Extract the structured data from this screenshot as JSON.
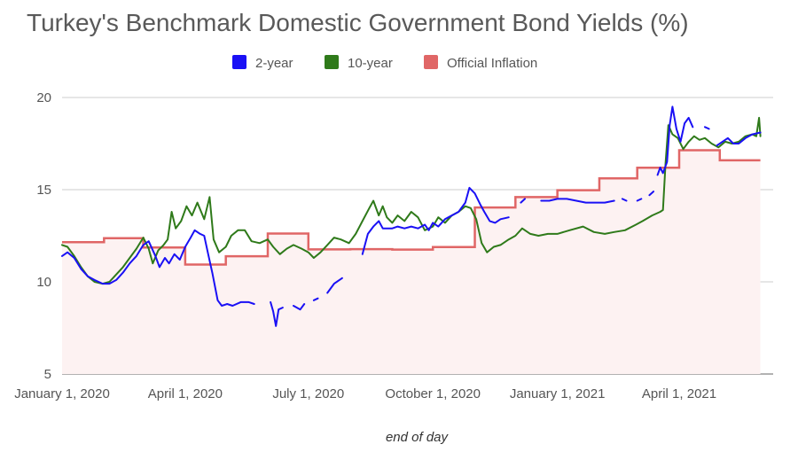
{
  "chart_data": {
    "type": "line",
    "title": "Turkey's Benchmark Domestic Government Bond Yields (%)",
    "xlabel": "end of day",
    "ylabel": "",
    "ylim": [
      5,
      20
    ],
    "yticks": [
      5,
      10,
      15,
      20
    ],
    "xticks": [
      {
        "label": "January 1, 2020",
        "date": "2020-01-01"
      },
      {
        "label": "April 1, 2020",
        "date": "2020-04-01"
      },
      {
        "label": "July 1, 2020",
        "date": "2020-07-01"
      },
      {
        "label": "October 1, 2020",
        "date": "2020-10-01"
      },
      {
        "label": "January 1, 2021",
        "date": "2021-01-01"
      },
      {
        "label": "April 1, 2021",
        "date": "2021-04-01"
      }
    ],
    "xlim": [
      "2020-01-01",
      "2021-06-01"
    ],
    "grid": true,
    "legend_position": "top",
    "series": [
      {
        "name": "2-year",
        "color": "#1a10f5",
        "points": [
          [
            "2020-01-01",
            11.4
          ],
          [
            "2020-01-05",
            11.6
          ],
          [
            "2020-01-10",
            11.3
          ],
          [
            "2020-01-15",
            10.7
          ],
          [
            "2020-01-20",
            10.3
          ],
          [
            "2020-01-25",
            10.1
          ],
          [
            "2020-01-31",
            9.9
          ],
          [
            "2020-02-05",
            9.9
          ],
          [
            "2020-02-10",
            10.1
          ],
          [
            "2020-02-15",
            10.5
          ],
          [
            "2020-02-20",
            11.0
          ],
          [
            "2020-02-25",
            11.4
          ],
          [
            "2020-03-01",
            12.0
          ],
          [
            "2020-03-05",
            12.2
          ],
          [
            "2020-03-10",
            11.4
          ],
          [
            "2020-03-13",
            10.8
          ],
          [
            "2020-03-17",
            11.3
          ],
          [
            "2020-03-20",
            11.0
          ],
          [
            "2020-03-24",
            11.5
          ],
          [
            "2020-03-28",
            11.2
          ],
          [
            "2020-04-01",
            11.9
          ],
          [
            "2020-04-05",
            12.4
          ],
          [
            "2020-04-08",
            12.8
          ],
          [
            "2020-04-12",
            12.6
          ],
          [
            "2020-04-15",
            12.5
          ],
          [
            "2020-04-18",
            11.5
          ],
          [
            "2020-04-21",
            10.5
          ],
          [
            "2020-04-25",
            9.0
          ],
          [
            "2020-04-28",
            8.7
          ],
          [
            "2020-05-02",
            8.8
          ],
          [
            "2020-05-06",
            8.7
          ],
          [
            "2020-05-12",
            8.9
          ],
          [
            "2020-05-18",
            8.9
          ],
          [
            "2020-05-22",
            8.8
          ],
          null,
          [
            "2020-06-03",
            8.9
          ],
          [
            "2020-06-05",
            8.4
          ],
          [
            "2020-06-07",
            7.6
          ],
          [
            "2020-06-09",
            8.5
          ],
          [
            "2020-06-12",
            8.6
          ],
          null,
          [
            "2020-06-20",
            8.7
          ],
          [
            "2020-06-25",
            8.5
          ],
          [
            "2020-06-28",
            8.8
          ],
          null,
          [
            "2020-07-05",
            9.0
          ],
          [
            "2020-07-08",
            9.1
          ],
          null,
          [
            "2020-07-15",
            9.4
          ],
          [
            "2020-07-20",
            9.9
          ],
          [
            "2020-07-26",
            10.2
          ],
          null,
          [
            "2020-08-03",
            10.5
          ],
          null,
          [
            "2020-08-10",
            11.5
          ],
          [
            "2020-08-14",
            12.6
          ],
          [
            "2020-08-18",
            13.0
          ],
          [
            "2020-08-22",
            13.3
          ],
          [
            "2020-08-25",
            12.9
          ],
          [
            "2020-09-01",
            12.9
          ],
          [
            "2020-09-05",
            13.0
          ],
          [
            "2020-09-10",
            12.9
          ],
          [
            "2020-09-15",
            13.0
          ],
          [
            "2020-09-20",
            12.9
          ],
          [
            "2020-09-25",
            13.1
          ],
          [
            "2020-09-28",
            12.8
          ],
          [
            "2020-10-01",
            13.2
          ],
          [
            "2020-10-05",
            13.0
          ],
          [
            "2020-10-10",
            13.4
          ],
          [
            "2020-10-15",
            13.6
          ],
          [
            "2020-10-20",
            13.8
          ],
          [
            "2020-10-25",
            14.3
          ],
          [
            "2020-10-28",
            15.1
          ],
          [
            "2020-11-01",
            14.8
          ],
          [
            "2020-11-05",
            14.2
          ],
          [
            "2020-11-08",
            13.8
          ],
          [
            "2020-11-12",
            13.3
          ],
          [
            "2020-11-16",
            13.2
          ],
          [
            "2020-11-20",
            13.4
          ],
          [
            "2020-11-26",
            13.5
          ],
          null,
          [
            "2020-12-05",
            14.3
          ],
          [
            "2020-12-08",
            14.5
          ],
          null,
          [
            "2020-12-20",
            14.4
          ],
          [
            "2020-12-26",
            14.4
          ],
          [
            "2021-01-01",
            14.5
          ],
          [
            "2021-01-08",
            14.5
          ],
          [
            "2021-01-15",
            14.4
          ],
          [
            "2021-01-22",
            14.3
          ],
          [
            "2021-01-29",
            14.3
          ],
          [
            "2021-02-05",
            14.3
          ],
          [
            "2021-02-12",
            14.4
          ],
          null,
          [
            "2021-02-18",
            14.5
          ],
          [
            "2021-02-21",
            14.4
          ],
          null,
          [
            "2021-03-01",
            14.4
          ],
          [
            "2021-03-04",
            14.5
          ],
          null,
          [
            "2021-03-10",
            14.7
          ],
          [
            "2021-03-13",
            14.9
          ],
          null,
          [
            "2021-03-16",
            15.8
          ],
          [
            "2021-03-18",
            16.2
          ],
          [
            "2021-03-20",
            15.9
          ],
          [
            "2021-03-23",
            16.5
          ],
          [
            "2021-03-25",
            18.5
          ],
          [
            "2021-03-27",
            19.5
          ],
          [
            "2021-03-30",
            18.3
          ],
          [
            "2021-04-02",
            17.6
          ],
          [
            "2021-04-05",
            18.6
          ],
          [
            "2021-04-08",
            18.9
          ],
          [
            "2021-04-11",
            18.4
          ],
          null,
          [
            "2021-04-20",
            18.4
          ],
          [
            "2021-04-23",
            18.3
          ],
          null,
          [
            "2021-04-29",
            17.4
          ],
          [
            "2021-05-03",
            17.6
          ],
          [
            "2021-05-07",
            17.8
          ],
          [
            "2021-05-11",
            17.5
          ],
          [
            "2021-05-15",
            17.5
          ],
          [
            "2021-05-20",
            17.8
          ],
          [
            "2021-05-25",
            18.0
          ],
          [
            "2021-05-31",
            18.1
          ]
        ]
      },
      {
        "name": "10-year",
        "color": "#2f7a1a",
        "points": [
          [
            "2020-01-01",
            12.0
          ],
          [
            "2020-01-05",
            11.9
          ],
          [
            "2020-01-10",
            11.4
          ],
          [
            "2020-01-15",
            10.8
          ],
          [
            "2020-01-20",
            10.3
          ],
          [
            "2020-01-25",
            10.0
          ],
          [
            "2020-01-31",
            9.9
          ],
          [
            "2020-02-05",
            10.0
          ],
          [
            "2020-02-10",
            10.4
          ],
          [
            "2020-02-15",
            10.8
          ],
          [
            "2020-02-20",
            11.3
          ],
          [
            "2020-02-25",
            11.8
          ],
          [
            "2020-03-01",
            12.4
          ],
          [
            "2020-03-05",
            11.8
          ],
          [
            "2020-03-08",
            11.0
          ],
          [
            "2020-03-12",
            11.7
          ],
          [
            "2020-03-16",
            12.0
          ],
          [
            "2020-03-19",
            12.3
          ],
          [
            "2020-03-22",
            13.8
          ],
          [
            "2020-03-25",
            12.9
          ],
          [
            "2020-03-29",
            13.3
          ],
          [
            "2020-04-02",
            14.1
          ],
          [
            "2020-04-06",
            13.6
          ],
          [
            "2020-04-10",
            14.3
          ],
          [
            "2020-04-15",
            13.4
          ],
          [
            "2020-04-19",
            14.6
          ],
          [
            "2020-04-22",
            12.3
          ],
          [
            "2020-04-26",
            11.6
          ],
          [
            "2020-05-01",
            11.9
          ],
          [
            "2020-05-05",
            12.5
          ],
          [
            "2020-05-10",
            12.8
          ],
          [
            "2020-05-15",
            12.8
          ],
          [
            "2020-05-20",
            12.2
          ],
          [
            "2020-05-26",
            12.1
          ],
          [
            "2020-06-01",
            12.3
          ],
          [
            "2020-06-05",
            11.9
          ],
          [
            "2020-06-10",
            11.5
          ],
          [
            "2020-06-15",
            11.8
          ],
          [
            "2020-06-20",
            12.0
          ],
          [
            "2020-06-26",
            11.8
          ],
          [
            "2020-07-01",
            11.6
          ],
          [
            "2020-07-05",
            11.3
          ],
          [
            "2020-07-10",
            11.6
          ],
          [
            "2020-07-15",
            12.0
          ],
          [
            "2020-07-20",
            12.4
          ],
          [
            "2020-07-25",
            12.3
          ],
          [
            "2020-07-31",
            12.1
          ],
          [
            "2020-08-05",
            12.6
          ],
          [
            "2020-08-10",
            13.3
          ],
          [
            "2020-08-15",
            14.0
          ],
          [
            "2020-08-18",
            14.4
          ],
          [
            "2020-08-22",
            13.6
          ],
          [
            "2020-08-25",
            14.1
          ],
          [
            "2020-08-28",
            13.5
          ],
          [
            "2020-09-01",
            13.2
          ],
          [
            "2020-09-05",
            13.6
          ],
          [
            "2020-09-10",
            13.3
          ],
          [
            "2020-09-15",
            13.8
          ],
          [
            "2020-09-20",
            13.5
          ],
          [
            "2020-09-25",
            12.8
          ],
          [
            "2020-10-01",
            13.0
          ],
          [
            "2020-10-05",
            13.5
          ],
          [
            "2020-10-10",
            13.2
          ],
          [
            "2020-10-15",
            13.6
          ],
          [
            "2020-10-20",
            13.8
          ],
          [
            "2020-10-25",
            14.1
          ],
          [
            "2020-10-29",
            14.0
          ],
          [
            "2020-11-02",
            13.4
          ],
          [
            "2020-11-06",
            12.1
          ],
          [
            "2020-11-10",
            11.6
          ],
          [
            "2020-11-15",
            11.9
          ],
          [
            "2020-11-20",
            12.0
          ],
          [
            "2020-11-26",
            12.3
          ],
          [
            "2020-12-01",
            12.5
          ],
          [
            "2020-12-06",
            12.9
          ],
          [
            "2020-12-12",
            12.6
          ],
          [
            "2020-12-18",
            12.5
          ],
          [
            "2020-12-25",
            12.6
          ],
          [
            "2021-01-01",
            12.6
          ],
          [
            "2021-01-10",
            12.8
          ],
          [
            "2021-01-20",
            13.0
          ],
          [
            "2021-01-28",
            12.7
          ],
          [
            "2021-02-05",
            12.6
          ],
          [
            "2021-02-12",
            12.7
          ],
          [
            "2021-02-20",
            12.8
          ],
          [
            "2021-02-28",
            13.1
          ],
          [
            "2021-03-05",
            13.3
          ],
          [
            "2021-03-12",
            13.6
          ],
          [
            "2021-03-18",
            13.8
          ],
          [
            "2021-03-20",
            13.9
          ],
          [
            "2021-03-22",
            16.5
          ],
          [
            "2021-03-24",
            18.5
          ],
          [
            "2021-03-27",
            18.0
          ],
          [
            "2021-03-31",
            17.8
          ],
          [
            "2021-04-04",
            17.2
          ],
          [
            "2021-04-08",
            17.6
          ],
          [
            "2021-04-12",
            17.9
          ],
          [
            "2021-04-16",
            17.7
          ],
          [
            "2021-04-20",
            17.8
          ],
          [
            "2021-04-25",
            17.5
          ],
          [
            "2021-04-30",
            17.3
          ],
          [
            "2021-05-05",
            17.6
          ],
          [
            "2021-05-10",
            17.5
          ],
          [
            "2021-05-15",
            17.6
          ],
          [
            "2021-05-20",
            17.9
          ],
          [
            "2021-05-25",
            18.0
          ],
          [
            "2021-05-28",
            17.9
          ],
          [
            "2021-05-30",
            18.9
          ],
          [
            "2021-05-31",
            17.9
          ]
        ]
      },
      {
        "name": "Official Inflation",
        "color": "#e06666",
        "fill": "#fdf2f2",
        "steps": [
          [
            "2020-01-01",
            12.15
          ],
          [
            "2020-02-01",
            12.37
          ],
          [
            "2020-03-01",
            11.86
          ],
          [
            "2020-04-01",
            10.94
          ],
          [
            "2020-05-01",
            11.39
          ],
          [
            "2020-06-01",
            12.62
          ],
          [
            "2020-07-01",
            11.76
          ],
          [
            "2020-08-01",
            11.77
          ],
          [
            "2020-09-01",
            11.75
          ],
          [
            "2020-10-01",
            11.89
          ],
          [
            "2020-11-01",
            14.03
          ],
          [
            "2020-12-01",
            14.6
          ],
          [
            "2021-01-01",
            14.97
          ],
          [
            "2021-02-01",
            15.61
          ],
          [
            "2021-03-01",
            16.19
          ],
          [
            "2021-04-01",
            17.14
          ],
          [
            "2021-05-01",
            16.59
          ],
          [
            "2021-05-31",
            16.59
          ]
        ]
      }
    ]
  }
}
